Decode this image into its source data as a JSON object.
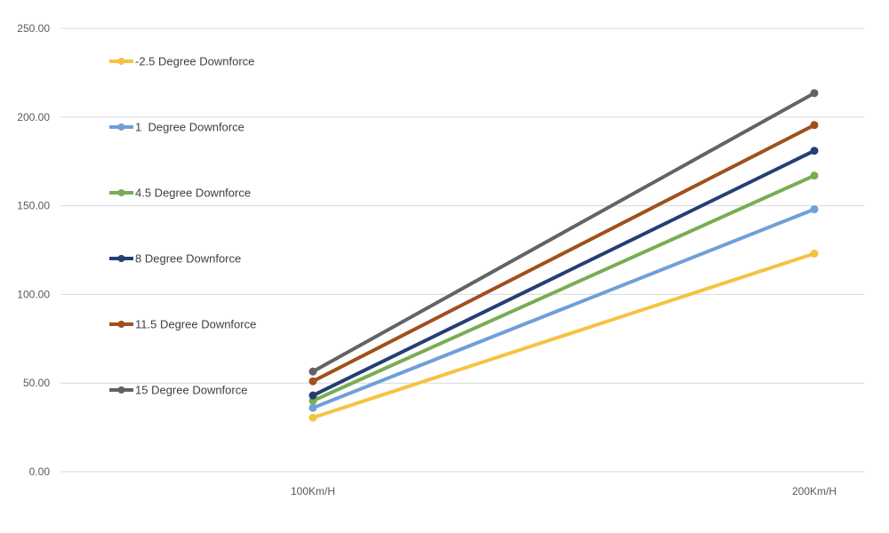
{
  "chart_data": {
    "type": "line",
    "categories": [
      "100Km/H",
      "200Km/H"
    ],
    "series": [
      {
        "name": "-2.5 Degree Downforce",
        "color": "#F5C342",
        "values": [
          30.5,
          123.0
        ]
      },
      {
        "name": "1  Degree Downforce",
        "color": "#6F9FD8",
        "values": [
          36.0,
          148.0
        ]
      },
      {
        "name": "4.5 Degree Downforce",
        "color": "#78AD52",
        "values": [
          40.0,
          167.0
        ]
      },
      {
        "name": "8 Degree Downforce",
        "color": "#243F73",
        "values": [
          43.0,
          181.0
        ]
      },
      {
        "name": "11.5 Degree Downforce",
        "color": "#A0501C",
        "values": [
          51.0,
          195.5
        ]
      },
      {
        "name": "15 Degree Downforce",
        "color": "#636363",
        "values": [
          56.5,
          213.5
        ]
      }
    ],
    "y_ticks": [
      "0.00",
      "50.00",
      "100.00",
      "150.00",
      "200.00",
      "250.00"
    ],
    "ylim": [
      0,
      250
    ],
    "grid": true,
    "legend": "left"
  }
}
